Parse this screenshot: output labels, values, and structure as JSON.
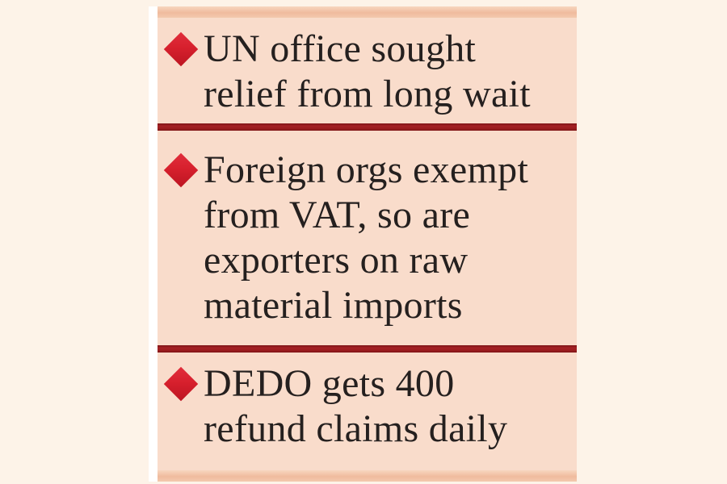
{
  "panel": {
    "bullets": [
      {
        "lines": [
          "UN office sought",
          "relief from long wait"
        ]
      },
      {
        "lines": [
          "Foreign orgs exempt",
          "from VAT, so are",
          "exporters on raw",
          "material imports"
        ]
      },
      {
        "lines": [
          "DEDO gets 400",
          "refund claims daily"
        ]
      }
    ]
  },
  "icons": {
    "bullet_marker": "diamond"
  },
  "colors": {
    "background": "#fdf3e8",
    "panel": "#f9dccb",
    "edge_strip": "#ffffff",
    "band": "#f0bb9e",
    "divider": "#9b1d1f",
    "diamond": "#d7202d",
    "text": "#25201f"
  }
}
